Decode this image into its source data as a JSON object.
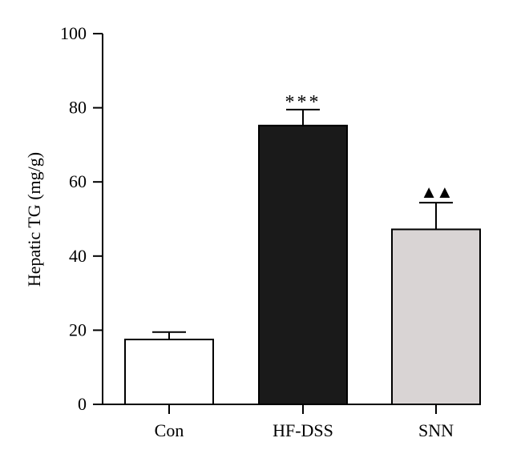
{
  "chart_data": {
    "type": "bar",
    "title": "",
    "xlabel": "",
    "ylabel": "Hepatic TG (mg/g)",
    "ylim": [
      0,
      100
    ],
    "yticks": [
      "0",
      "20",
      "40",
      "60",
      "80",
      "100"
    ],
    "categories": [
      "Con",
      "HF-DSS",
      "SNN"
    ],
    "values": [
      17.5,
      75.2,
      47.2
    ],
    "errors": [
      2.0,
      4.3,
      7.2
    ],
    "bar_colors": [
      "#ffffff",
      "#1a1a1a",
      "#d9d4d4"
    ],
    "annotations": [
      "",
      "***",
      "▲▲"
    ],
    "grid": false
  }
}
